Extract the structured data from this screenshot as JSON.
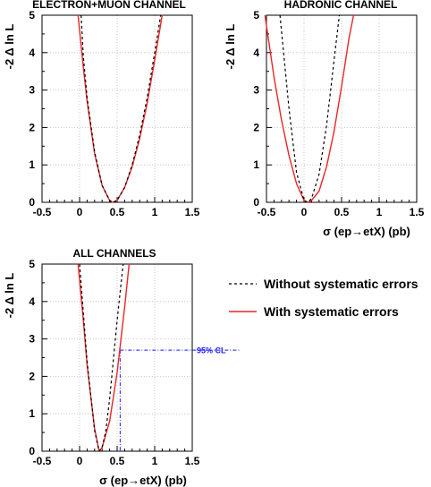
{
  "figure": {
    "legend": [
      {
        "text": "Without systematic errors",
        "color": "#000000",
        "dash": "3,3"
      },
      {
        "text": "With systematic errors",
        "color": "#e8262a",
        "dash": ""
      }
    ],
    "cl_label": "95% CL",
    "cl_color": "#1a1aff"
  },
  "chart_data": [
    {
      "type": "line",
      "title": "ELECTRON+MUON CHANNEL",
      "xlabel": "",
      "ylabel": "-2 Δ ln L",
      "xlim": [
        -0.5,
        1.5
      ],
      "ylim": [
        0,
        5
      ],
      "xticks": [
        "-0.5",
        "0",
        "0.5",
        "1",
        "1.5"
      ],
      "yticks": [
        "0",
        "1",
        "2",
        "3",
        "4",
        "5"
      ],
      "grid": true,
      "series": [
        {
          "name": "Without systematic errors",
          "x": [
            0.02,
            0.05,
            0.1,
            0.2,
            0.3,
            0.4,
            0.44,
            0.5,
            0.6,
            0.7,
            0.8,
            0.9,
            1.0,
            1.08
          ],
          "y": [
            5.0,
            3.9,
            2.8,
            1.35,
            0.45,
            0.05,
            0.0,
            0.05,
            0.4,
            1.0,
            1.8,
            2.8,
            4.0,
            5.0
          ],
          "style": "dashed"
        },
        {
          "name": "With systematic errors",
          "x": [
            -0.02,
            0.05,
            0.1,
            0.2,
            0.3,
            0.4,
            0.44,
            0.5,
            0.6,
            0.7,
            0.8,
            0.9,
            1.0,
            1.1
          ],
          "y": [
            5.0,
            3.6,
            2.7,
            1.3,
            0.45,
            0.05,
            0.0,
            0.05,
            0.4,
            0.95,
            1.7,
            2.65,
            3.8,
            5.0
          ],
          "style": "solid"
        }
      ]
    },
    {
      "type": "line",
      "title": "HADRONIC CHANNEL",
      "xlabel": "σ (ep→etX)  (pb)",
      "ylabel": "-2 Δ ln L",
      "xlim": [
        -0.5,
        1.5
      ],
      "ylim": [
        0,
        5
      ],
      "xticks": [
        "-0.5",
        "0",
        "0.5",
        "1",
        "1.5"
      ],
      "yticks": [
        "0",
        "1",
        "2",
        "3",
        "4",
        "5"
      ],
      "grid": true,
      "series": [
        {
          "name": "Without systematic errors",
          "x": [
            -0.32,
            -0.2,
            -0.1,
            0.0,
            0.05,
            0.1,
            0.2,
            0.3,
            0.4,
            0.47
          ],
          "y": [
            5.0,
            2.5,
            0.8,
            0.05,
            0.0,
            0.1,
            0.75,
            2.05,
            3.8,
            5.0
          ],
          "style": "dashed"
        },
        {
          "name": "With systematic errors",
          "x": [
            -0.52,
            -0.4,
            -0.3,
            -0.2,
            -0.1,
            0.0,
            0.05,
            0.1,
            0.2,
            0.3,
            0.4,
            0.5,
            0.6,
            0.66
          ],
          "y": [
            5.0,
            3.35,
            2.2,
            1.25,
            0.5,
            0.05,
            0.0,
            0.05,
            0.3,
            0.95,
            1.9,
            3.1,
            4.4,
            5.0
          ],
          "style": "solid"
        }
      ]
    },
    {
      "type": "line",
      "title": "ALL CHANNELS",
      "xlabel": "σ (ep→etX)  (pb)",
      "ylabel": "-2 Δ ln L",
      "xlim": [
        -0.5,
        1.5
      ],
      "ylim": [
        0,
        5
      ],
      "xticks": [
        "-0.5",
        "0",
        "0.5",
        "1",
        "1.5"
      ],
      "yticks": [
        "0",
        "1",
        "2",
        "3",
        "4",
        "5"
      ],
      "grid": true,
      "cl": {
        "x": 0.54,
        "y": 2.7
      },
      "series": [
        {
          "name": "Without systematic errors",
          "x": [
            0.0,
            0.1,
            0.2,
            0.26,
            0.3,
            0.35,
            0.4,
            0.5,
            0.58
          ],
          "y": [
            5.0,
            2.4,
            0.55,
            0.0,
            0.1,
            0.55,
            1.4,
            3.5,
            5.0
          ],
          "style": "dashed"
        },
        {
          "name": "With systematic errors",
          "x": [
            -0.02,
            0.05,
            0.1,
            0.2,
            0.26,
            0.3,
            0.4,
            0.5,
            0.6,
            0.66
          ],
          "y": [
            5.0,
            3.5,
            2.3,
            0.6,
            0.0,
            0.1,
            0.8,
            2.1,
            3.85,
            5.0
          ],
          "style": "solid"
        }
      ]
    }
  ]
}
